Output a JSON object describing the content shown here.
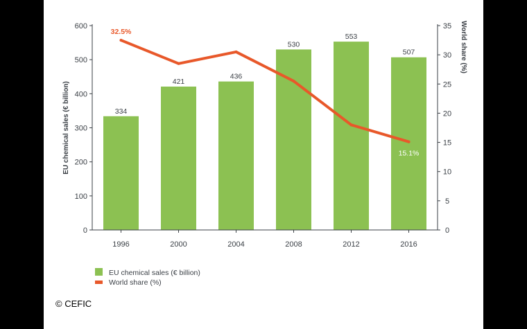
{
  "chart_data": {
    "type": "bar",
    "categories": [
      "1996",
      "2000",
      "2004",
      "2008",
      "2012",
      "2016"
    ],
    "series": [
      {
        "name": "EU chemical sales (€ billion)",
        "type": "bar",
        "axis": "left",
        "color": "#8cc152",
        "values": [
          334,
          421,
          436,
          530,
          553,
          507
        ],
        "labels": [
          "334",
          "421",
          "436",
          "530",
          "553",
          "507"
        ]
      },
      {
        "name": "World share (%)",
        "type": "line",
        "axis": "right",
        "color": "#e8582a",
        "values": [
          32.5,
          28.5,
          30.5,
          25.5,
          18,
          15.1
        ],
        "labels": [
          "32.5%",
          "",
          "",
          "",
          "",
          "15.1%"
        ]
      }
    ],
    "ylabel": "EU chemical sales (€ billion)",
    "ylim": [
      0,
      600
    ],
    "yticks": [
      0,
      100,
      200,
      300,
      400,
      500,
      600
    ],
    "y2label": "World share (%)",
    "y2lim": [
      0,
      35
    ],
    "y2ticks": [
      0,
      5,
      10,
      15,
      20,
      25,
      30,
      35
    ],
    "grid": false,
    "legend": "bottom-left"
  },
  "credit": "© CEFIC"
}
